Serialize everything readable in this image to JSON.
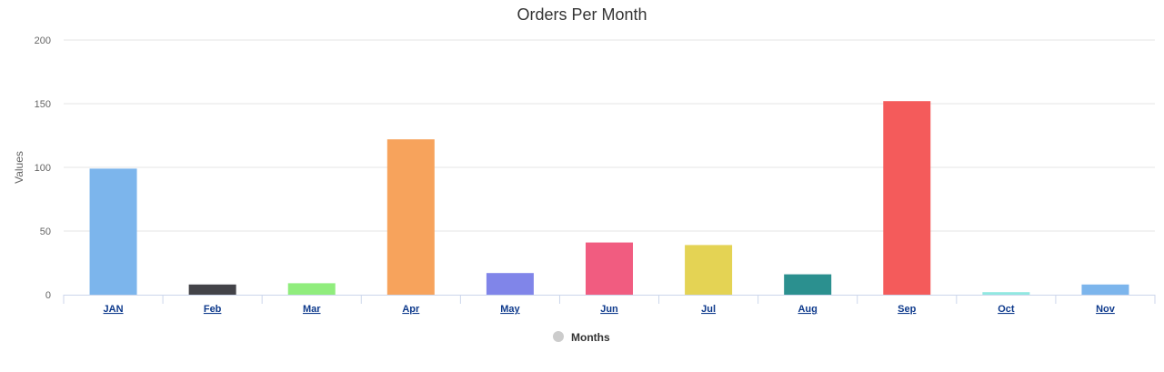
{
  "chart_data": {
    "type": "bar",
    "title": "Orders Per Month",
    "xlabel": "",
    "ylabel": "Values",
    "ylim": [
      0,
      200
    ],
    "yticks": [
      0,
      50,
      100,
      150,
      200
    ],
    "categories": [
      "JAN",
      "Feb",
      "Mar",
      "Apr",
      "May",
      "Jun",
      "Jul",
      "Aug",
      "Sep",
      "Oct",
      "Nov"
    ],
    "series": [
      {
        "name": "Months",
        "values": [
          99,
          8,
          9,
          122,
          17,
          41,
          39,
          16,
          152,
          2,
          8
        ],
        "colors": [
          "#7cb5ec",
          "#434348",
          "#90ed7d",
          "#f7a35c",
          "#8085e9",
          "#f15c80",
          "#e4d354",
          "#2b908f",
          "#f45b5b",
          "#91e8e1",
          "#7cb5ec"
        ]
      }
    ],
    "grid": true,
    "legend_position": "bottom-center",
    "legend_marker_color": "#cccccc"
  }
}
